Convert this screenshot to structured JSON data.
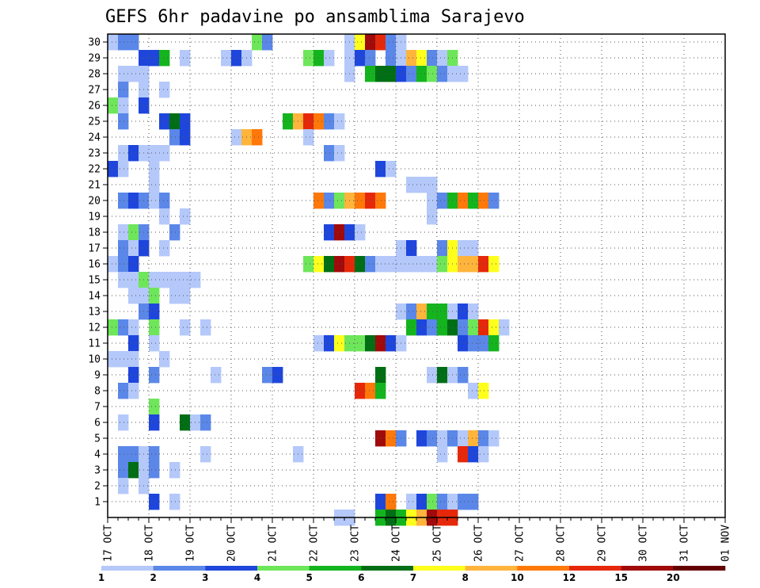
{
  "chart_data": {
    "type": "heatmap",
    "title": "GEFS 6hr padavine po ansamblima Sarajevo",
    "y_ticks": [
      "1",
      "2",
      "3",
      "4",
      "5",
      "6",
      "7",
      "8",
      "9",
      "10",
      "11",
      "12",
      "13",
      "14",
      "15",
      "16",
      "17",
      "18",
      "19",
      "20",
      "21",
      "22",
      "23",
      "24",
      "25",
      "26",
      "27",
      "28",
      "29",
      "30"
    ],
    "x_ticks": [
      "17 OCT",
      "18 OCT",
      "19 OCT",
      "20 OCT",
      "21 OCT",
      "22 OCT",
      "23 OCT",
      "24 OCT",
      "25 OCT",
      "26 OCT",
      "27 OCT",
      "28 OCT",
      "29 OCT",
      "30 OCT",
      "31 OCT",
      "01 NOV"
    ],
    "time_steps_per_day": 4,
    "grid": true,
    "colorbar": {
      "labels": [
        "1",
        "2",
        "3",
        "4",
        "5",
        "6",
        "7",
        "8",
        "10",
        "12",
        "15",
        "20"
      ],
      "colors": [
        "#b4c8fa",
        "#5a87e8",
        "#1e46dc",
        "#6ee65a",
        "#14b41e",
        "#006e14",
        "#ffff1e",
        "#ffb43c",
        "#ff780a",
        "#e6280a",
        "#a00a0a",
        "#640000"
      ],
      "placement": "bottom"
    },
    "cells": [
      [
        30,
        0,
        1
      ],
      [
        30,
        1,
        2
      ],
      [
        30,
        2,
        2
      ],
      [
        30,
        14,
        4
      ],
      [
        30,
        15,
        2
      ],
      [
        30,
        23,
        1
      ],
      [
        30,
        24,
        7
      ],
      [
        30,
        25,
        11
      ],
      [
        30,
        26,
        10
      ],
      [
        30,
        27,
        2
      ],
      [
        30,
        28,
        1
      ],
      [
        29,
        3,
        3
      ],
      [
        29,
        4,
        3
      ],
      [
        29,
        5,
        5
      ],
      [
        29,
        7,
        1
      ],
      [
        29,
        11,
        1
      ],
      [
        29,
        12,
        3
      ],
      [
        29,
        13,
        1
      ],
      [
        29,
        19,
        4
      ],
      [
        29,
        20,
        5
      ],
      [
        29,
        21,
        1
      ],
      [
        29,
        23,
        1
      ],
      [
        29,
        24,
        3
      ],
      [
        29,
        25,
        2
      ],
      [
        29,
        27,
        2
      ],
      [
        29,
        28,
        1
      ],
      [
        29,
        29,
        8
      ],
      [
        29,
        30,
        7
      ],
      [
        29,
        31,
        2
      ],
      [
        29,
        32,
        1
      ],
      [
        29,
        33,
        4
      ],
      [
        28,
        1,
        1
      ],
      [
        28,
        2,
        1
      ],
      [
        28,
        3,
        1
      ],
      [
        28,
        23,
        1
      ],
      [
        28,
        25,
        5
      ],
      [
        28,
        26,
        6
      ],
      [
        28,
        27,
        6
      ],
      [
        28,
        28,
        3
      ],
      [
        28,
        29,
        2
      ],
      [
        28,
        30,
        5
      ],
      [
        28,
        31,
        4
      ],
      [
        28,
        32,
        2
      ],
      [
        28,
        33,
        1
      ],
      [
        28,
        34,
        1
      ],
      [
        27,
        1,
        2
      ],
      [
        27,
        3,
        1
      ],
      [
        27,
        5,
        1
      ],
      [
        26,
        0,
        4
      ],
      [
        26,
        1,
        1
      ],
      [
        26,
        3,
        3
      ],
      [
        25,
        1,
        2
      ],
      [
        25,
        5,
        3
      ],
      [
        25,
        6,
        6
      ],
      [
        25,
        7,
        3
      ],
      [
        25,
        17,
        5
      ],
      [
        25,
        18,
        8
      ],
      [
        25,
        19,
        10
      ],
      [
        25,
        20,
        9
      ],
      [
        25,
        21,
        2
      ],
      [
        25,
        22,
        1
      ],
      [
        24,
        6,
        2
      ],
      [
        24,
        7,
        3
      ],
      [
        24,
        12,
        1
      ],
      [
        24,
        13,
        8
      ],
      [
        24,
        14,
        9
      ],
      [
        24,
        19,
        1
      ],
      [
        23,
        1,
        1
      ],
      [
        23,
        2,
        3
      ],
      [
        23,
        3,
        1
      ],
      [
        23,
        4,
        1
      ],
      [
        23,
        5,
        1
      ],
      [
        23,
        21,
        2
      ],
      [
        23,
        22,
        1
      ],
      [
        22,
        0,
        3
      ],
      [
        22,
        1,
        1
      ],
      [
        22,
        4,
        1
      ],
      [
        22,
        26,
        3
      ],
      [
        22,
        27,
        1
      ],
      [
        21,
        4,
        1
      ],
      [
        21,
        29,
        1
      ],
      [
        21,
        30,
        1
      ],
      [
        21,
        31,
        1
      ],
      [
        20,
        1,
        2
      ],
      [
        20,
        2,
        3
      ],
      [
        20,
        3,
        2
      ],
      [
        20,
        4,
        1
      ],
      [
        20,
        5,
        2
      ],
      [
        20,
        20,
        9
      ],
      [
        20,
        21,
        2
      ],
      [
        20,
        22,
        4
      ],
      [
        20,
        23,
        8
      ],
      [
        20,
        24,
        9
      ],
      [
        20,
        25,
        10
      ],
      [
        20,
        26,
        9
      ],
      [
        20,
        31,
        1
      ],
      [
        20,
        32,
        2
      ],
      [
        20,
        33,
        5
      ],
      [
        20,
        34,
        9
      ],
      [
        20,
        35,
        5
      ],
      [
        20,
        36,
        9
      ],
      [
        20,
        37,
        2
      ],
      [
        19,
        5,
        1
      ],
      [
        19,
        7,
        1
      ],
      [
        19,
        31,
        1
      ],
      [
        18,
        1,
        1
      ],
      [
        18,
        2,
        4
      ],
      [
        18,
        3,
        2
      ],
      [
        18,
        6,
        2
      ],
      [
        18,
        21,
        3
      ],
      [
        18,
        22,
        11
      ],
      [
        18,
        23,
        3
      ],
      [
        18,
        24,
        1
      ],
      [
        17,
        1,
        2
      ],
      [
        17,
        2,
        1
      ],
      [
        17,
        3,
        3
      ],
      [
        17,
        5,
        1
      ],
      [
        17,
        28,
        1
      ],
      [
        17,
        29,
        3
      ],
      [
        17,
        32,
        2
      ],
      [
        17,
        33,
        7
      ],
      [
        17,
        34,
        1
      ],
      [
        17,
        35,
        1
      ],
      [
        16,
        0,
        1
      ],
      [
        16,
        1,
        2
      ],
      [
        16,
        2,
        3
      ],
      [
        16,
        19,
        4
      ],
      [
        16,
        20,
        7
      ],
      [
        16,
        21,
        6
      ],
      [
        16,
        22,
        11
      ],
      [
        16,
        23,
        10
      ],
      [
        16,
        24,
        6
      ],
      [
        16,
        25,
        2
      ],
      [
        16,
        26,
        1
      ],
      [
        16,
        27,
        1
      ],
      [
        16,
        28,
        1
      ],
      [
        16,
        29,
        1
      ],
      [
        16,
        30,
        1
      ],
      [
        16,
        31,
        1
      ],
      [
        16,
        32,
        4
      ],
      [
        16,
        33,
        7
      ],
      [
        16,
        34,
        8
      ],
      [
        16,
        35,
        8
      ],
      [
        16,
        36,
        10
      ],
      [
        16,
        37,
        7
      ],
      [
        15,
        1,
        1
      ],
      [
        15,
        2,
        1
      ],
      [
        15,
        3,
        4
      ],
      [
        15,
        4,
        1
      ],
      [
        15,
        5,
        1
      ],
      [
        15,
        6,
        1
      ],
      [
        15,
        7,
        1
      ],
      [
        15,
        8,
        1
      ],
      [
        14,
        2,
        1
      ],
      [
        14,
        3,
        1
      ],
      [
        14,
        4,
        4
      ],
      [
        14,
        6,
        1
      ],
      [
        14,
        7,
        1
      ],
      [
        13,
        3,
        2
      ],
      [
        13,
        4,
        3
      ],
      [
        13,
        28,
        1
      ],
      [
        13,
        29,
        2
      ],
      [
        13,
        30,
        8
      ],
      [
        13,
        31,
        5
      ],
      [
        13,
        32,
        5
      ],
      [
        13,
        33,
        1
      ],
      [
        13,
        34,
        3
      ],
      [
        13,
        35,
        1
      ],
      [
        12,
        0,
        4
      ],
      [
        12,
        1,
        2
      ],
      [
        12,
        2,
        1
      ],
      [
        12,
        4,
        4
      ],
      [
        12,
        7,
        1
      ],
      [
        12,
        9,
        1
      ],
      [
        12,
        29,
        5
      ],
      [
        12,
        30,
        3
      ],
      [
        12,
        31,
        2
      ],
      [
        12,
        32,
        5
      ],
      [
        12,
        33,
        6
      ],
      [
        12,
        34,
        2
      ],
      [
        12,
        35,
        4
      ],
      [
        12,
        36,
        10
      ],
      [
        12,
        37,
        7
      ],
      [
        12,
        38,
        1
      ],
      [
        11,
        2,
        3
      ],
      [
        11,
        4,
        1
      ],
      [
        11,
        20,
        1
      ],
      [
        11,
        21,
        3
      ],
      [
        11,
        22,
        7
      ],
      [
        11,
        23,
        4
      ],
      [
        11,
        24,
        4
      ],
      [
        11,
        25,
        6
      ],
      [
        11,
        26,
        11
      ],
      [
        11,
        27,
        3
      ],
      [
        11,
        28,
        1
      ],
      [
        11,
        34,
        3
      ],
      [
        11,
        35,
        2
      ],
      [
        11,
        36,
        2
      ],
      [
        11,
        37,
        5
      ],
      [
        10,
        0,
        1
      ],
      [
        10,
        1,
        1
      ],
      [
        10,
        2,
        1
      ],
      [
        10,
        5,
        1
      ],
      [
        9,
        2,
        3
      ],
      [
        9,
        4,
        2
      ],
      [
        9,
        10,
        1
      ],
      [
        9,
        15,
        2
      ],
      [
        9,
        16,
        3
      ],
      [
        9,
        26,
        6
      ],
      [
        9,
        31,
        1
      ],
      [
        9,
        32,
        6
      ],
      [
        9,
        33,
        1
      ],
      [
        9,
        34,
        2
      ],
      [
        8,
        1,
        2
      ],
      [
        8,
        2,
        1
      ],
      [
        8,
        24,
        10
      ],
      [
        8,
        25,
        9
      ],
      [
        8,
        26,
        5
      ],
      [
        8,
        35,
        1
      ],
      [
        8,
        36,
        7
      ],
      [
        7,
        4,
        4
      ],
      [
        6,
        1,
        1
      ],
      [
        6,
        4,
        3
      ],
      [
        6,
        7,
        6
      ],
      [
        6,
        8,
        1
      ],
      [
        6,
        9,
        2
      ],
      [
        5,
        26,
        11
      ],
      [
        5,
        27,
        9
      ],
      [
        5,
        28,
        2
      ],
      [
        5,
        30,
        3
      ],
      [
        5,
        31,
        2
      ],
      [
        5,
        32,
        1
      ],
      [
        5,
        33,
        2
      ],
      [
        5,
        34,
        1
      ],
      [
        5,
        35,
        8
      ],
      [
        5,
        36,
        2
      ],
      [
        5,
        37,
        1
      ],
      [
        4,
        1,
        2
      ],
      [
        4,
        2,
        2
      ],
      [
        4,
        3,
        1
      ],
      [
        4,
        4,
        2
      ],
      [
        4,
        9,
        1
      ],
      [
        4,
        18,
        1
      ],
      [
        4,
        32,
        1
      ],
      [
        4,
        34,
        10
      ],
      [
        4,
        35,
        3
      ],
      [
        4,
        36,
        1
      ],
      [
        3,
        1,
        2
      ],
      [
        3,
        2,
        6
      ],
      [
        3,
        3,
        1
      ],
      [
        3,
        4,
        2
      ],
      [
        3,
        6,
        1
      ],
      [
        2,
        1,
        1
      ],
      [
        2,
        3,
        1
      ],
      [
        1,
        4,
        3
      ],
      [
        1,
        6,
        1
      ],
      [
        1,
        26,
        3
      ],
      [
        1,
        27,
        9
      ],
      [
        1,
        29,
        1
      ],
      [
        1,
        30,
        3
      ],
      [
        1,
        31,
        4
      ],
      [
        1,
        32,
        2
      ],
      [
        1,
        33,
        1
      ],
      [
        1,
        34,
        2
      ],
      [
        1,
        35,
        2
      ],
      [
        0,
        22,
        1
      ],
      [
        0,
        23,
        1
      ],
      [
        0,
        26,
        5
      ],
      [
        0,
        27,
        6
      ],
      [
        0,
        28,
        5
      ],
      [
        0,
        29,
        7
      ],
      [
        0,
        30,
        8
      ],
      [
        0,
        31,
        11
      ],
      [
        0,
        32,
        10
      ],
      [
        0,
        33,
        10
      ]
    ]
  }
}
